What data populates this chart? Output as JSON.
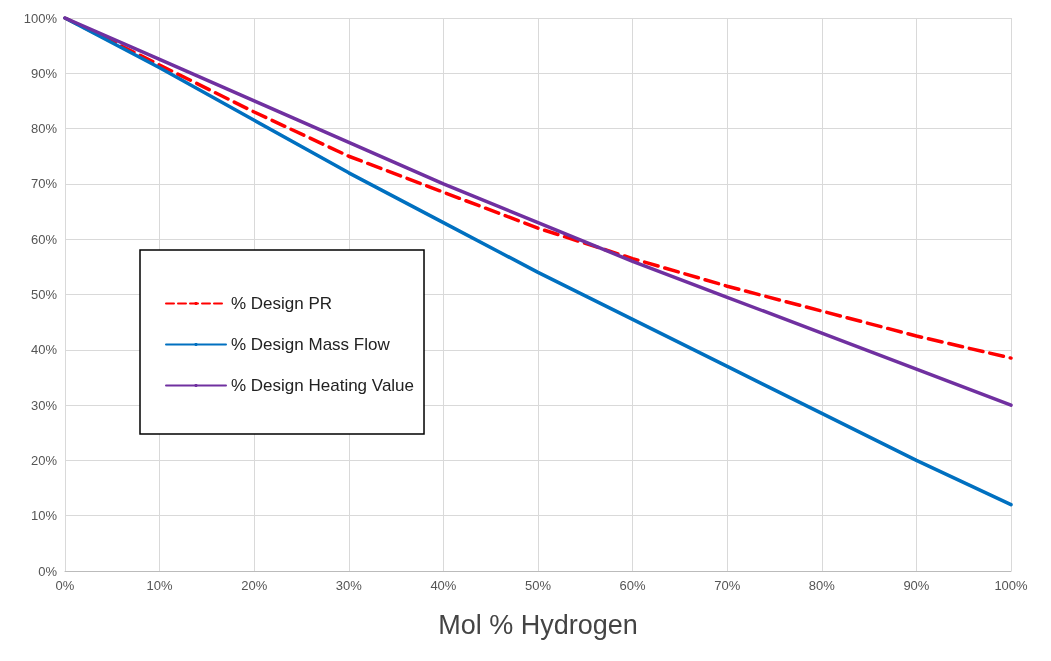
{
  "chart_data": {
    "type": "line",
    "xlabel": "Mol % Hydrogen",
    "x": [
      0,
      10,
      20,
      30,
      40,
      50,
      60,
      70,
      80,
      90,
      100
    ],
    "series": [
      {
        "name": "% Design PR",
        "color": "#ff0000",
        "line_style": "dashed",
        "values": [
          100,
          91.5,
          83,
          75,
          68.5,
          62,
          56.5,
          51.5,
          47,
          42.5,
          38.5
        ]
      },
      {
        "name": "% Design Mass Flow",
        "color": "#0070c0",
        "line_style": "solid",
        "values": [
          100,
          91,
          81.5,
          72,
          63,
          54,
          45.5,
          37,
          28.5,
          20,
          12
        ]
      },
      {
        "name": "% Design Heating Value",
        "color": "#7030a0",
        "line_style": "solid",
        "values": [
          100,
          92.5,
          85,
          77.5,
          70,
          63,
          56,
          49.5,
          43,
          36.5,
          30
        ]
      }
    ],
    "xlim": [
      0,
      100
    ],
    "xticks": [
      {
        "value": 0,
        "label": "0%"
      },
      {
        "value": 10,
        "label": "10%"
      },
      {
        "value": 20,
        "label": "20%"
      },
      {
        "value": 30,
        "label": "30%"
      },
      {
        "value": 40,
        "label": "40%"
      },
      {
        "value": 50,
        "label": "50%"
      },
      {
        "value": 60,
        "label": "60%"
      },
      {
        "value": 70,
        "label": "70%"
      },
      {
        "value": 80,
        "label": "80%"
      },
      {
        "value": 90,
        "label": "90%"
      },
      {
        "value": 100,
        "label": "100%"
      }
    ],
    "ylim": [
      0,
      100
    ],
    "yticks": [
      {
        "value": 0,
        "label": "0%"
      },
      {
        "value": 10,
        "label": "10%"
      },
      {
        "value": 20,
        "label": "20%"
      },
      {
        "value": 30,
        "label": "30%"
      },
      {
        "value": 40,
        "label": "40%"
      },
      {
        "value": 50,
        "label": "50%"
      },
      {
        "value": 60,
        "label": "60%"
      },
      {
        "value": 70,
        "label": "70%"
      },
      {
        "value": 80,
        "label": "80%"
      },
      {
        "value": 90,
        "label": "90%"
      },
      {
        "value": 100,
        "label": "100%"
      }
    ],
    "grid": true,
    "legend": "left",
    "marker": "none"
  }
}
